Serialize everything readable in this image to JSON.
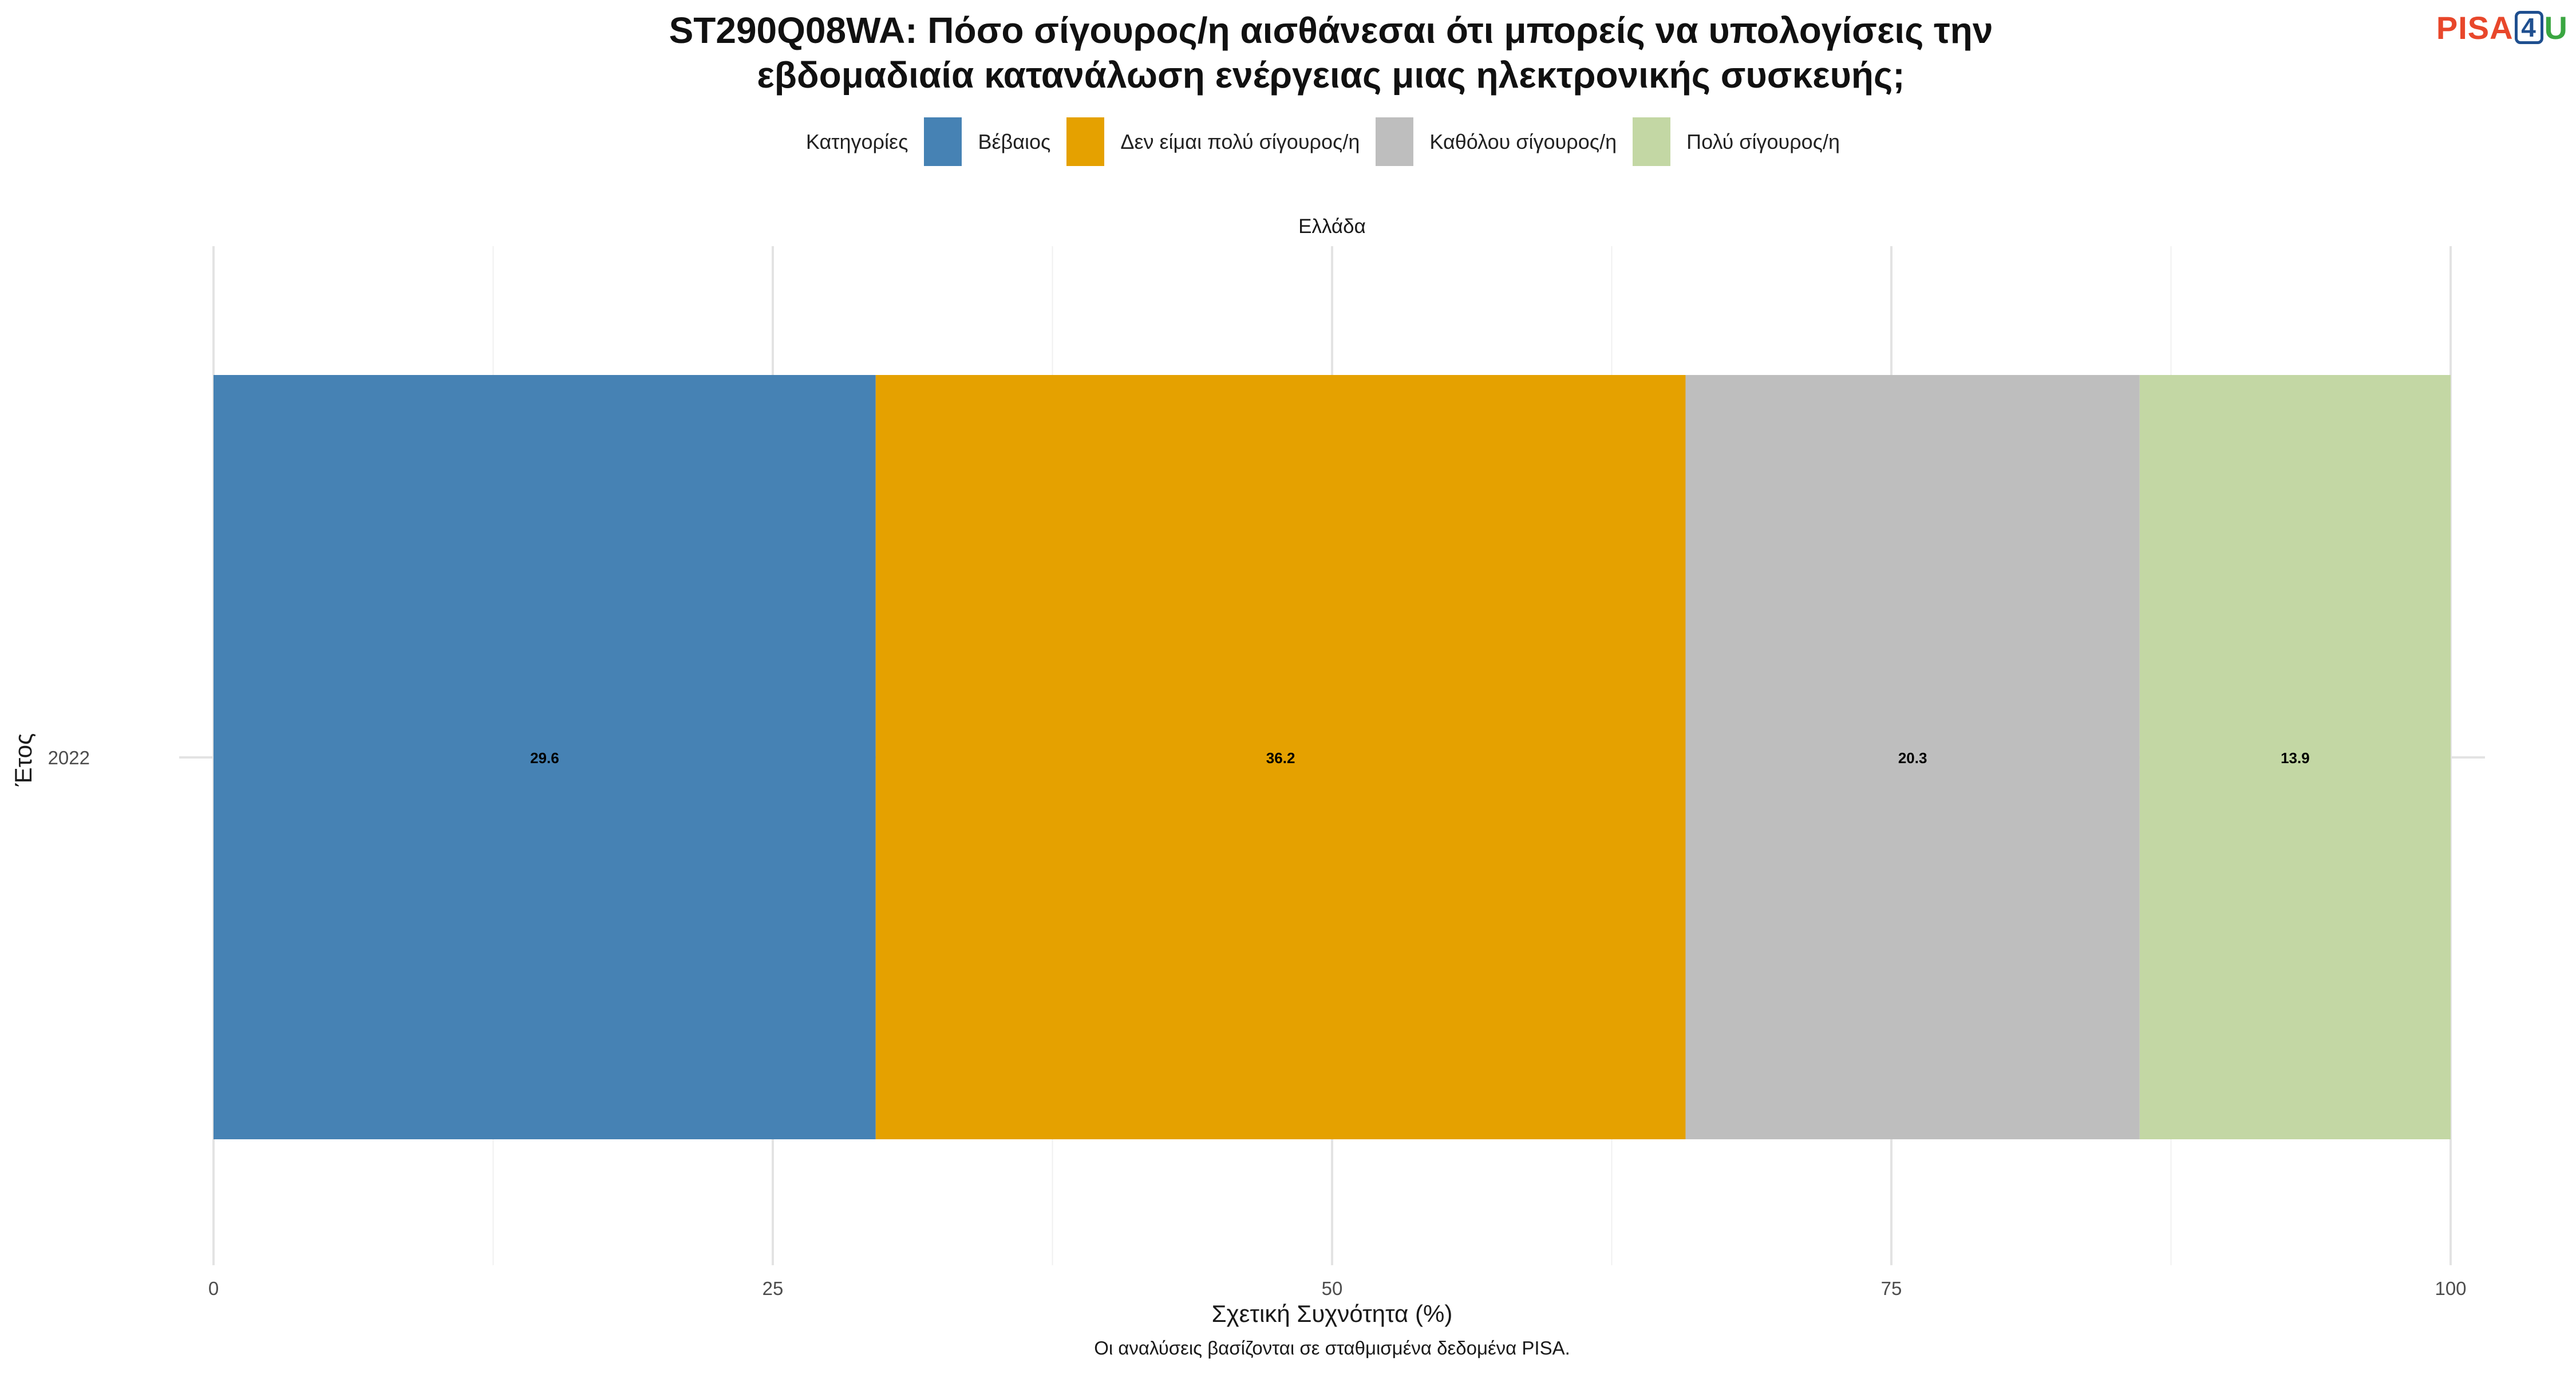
{
  "title_line1": "ST290Q08WA: Πόσο σίγουρος/η αισθάνεσαι ότι μπορείς να υπολογίσεις την",
  "title_line2": "εβδομαδιαία κατανάλωση ενέργειας μιας ηλεκτρονικής συσκευής;",
  "logo": {
    "part1": "PISA",
    "part2": "4",
    "part3": "U"
  },
  "legend_title": "Κατηγορίες",
  "legend_items": [
    "Βέβαιος",
    "Δεν είμαι πολύ σίγουρος/η",
    "Καθόλου σίγουρος/η",
    "Πολύ σίγουρος/η"
  ],
  "caption": "Οι αναλύσεις βασίζονται σε σταθμισμένα δεδομένα PISA.",
  "colors": {
    "Βέβαιος": "#4682b4",
    "Δεν είμαι πολύ σίγουρος/η": "#e5a100",
    "Καθόλου σίγουρος/η": "#bebebe",
    "Πολύ σίγουρος/η": "#c3d7a4"
  },
  "chart_data": {
    "type": "bar",
    "orientation": "horizontal",
    "stacked": true,
    "facet": "Ελλάδα",
    "categories": [
      "2022"
    ],
    "series": [
      {
        "name": "Βέβαιος",
        "values": [
          29.6
        ]
      },
      {
        "name": "Δεν είμαι πολύ σίγουρος/η",
        "values": [
          36.2
        ]
      },
      {
        "name": "Καθόλου σίγουρος/η",
        "values": [
          20.3
        ]
      },
      {
        "name": "Πολύ σίγουρος/η",
        "values": [
          13.9
        ]
      }
    ],
    "xlabel": "Σχετική Συχνότητα (%)",
    "ylabel": "Έτος",
    "xlim": [
      0,
      100
    ],
    "xticks": [
      0,
      25,
      50,
      75,
      100
    ],
    "grid": true,
    "legend_position": "top"
  }
}
